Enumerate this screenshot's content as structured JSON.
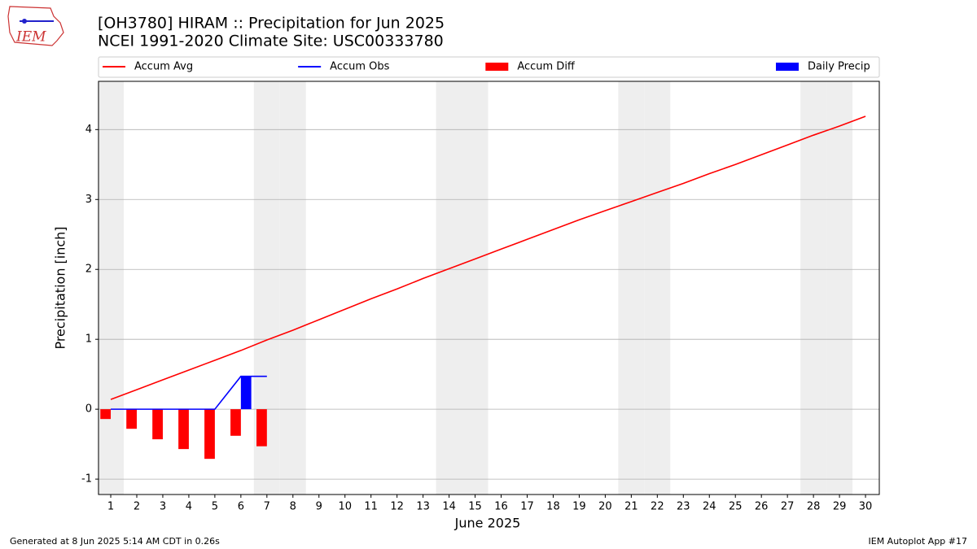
{
  "chart_data": {
    "type": "bar_line",
    "title": "[OH3780] HIRAM :: Precipitation for Jun 2025",
    "subtitle": "NCEI 1991-2020 Climate Site: USC00333780",
    "logo_text": "IEM",
    "xlabel": "June 2025",
    "ylabel": "Precipitation [inch]",
    "footer_left": "Generated at 8 Jun 2025 5:14 AM CDT in 0.26s",
    "footer_right": "IEM Autoplot App #17",
    "x": [
      1,
      2,
      3,
      4,
      5,
      6,
      7,
      8,
      9,
      10,
      11,
      12,
      13,
      14,
      15,
      16,
      17,
      18,
      19,
      20,
      21,
      22,
      23,
      24,
      25,
      26,
      27,
      28,
      29,
      30
    ],
    "shaded_days": [
      1,
      7,
      8,
      14,
      15,
      21,
      22,
      28,
      29
    ],
    "series": [
      {
        "name": "Accum Avg",
        "kind": "line",
        "color": "#ff0000",
        "values": [
          0.14,
          0.28,
          0.42,
          0.56,
          0.7,
          0.84,
          0.99,
          1.13,
          1.28,
          1.43,
          1.58,
          1.72,
          1.87,
          2.01,
          2.15,
          2.29,
          2.43,
          2.57,
          2.71,
          2.84,
          2.97,
          3.1,
          3.23,
          3.37,
          3.5,
          3.64,
          3.78,
          3.92,
          4.05,
          4.19
        ]
      },
      {
        "name": "Accum Obs",
        "kind": "line",
        "color": "#0000ff",
        "values": [
          0,
          0,
          0,
          0,
          0,
          0.47,
          0.47,
          null,
          null,
          null,
          null,
          null,
          null,
          null,
          null,
          null,
          null,
          null,
          null,
          null,
          null,
          null,
          null,
          null,
          null,
          null,
          null,
          null,
          null,
          null
        ]
      },
      {
        "name": "Accum Diff",
        "kind": "bar",
        "color": "#ff0000",
        "values": [
          -0.14,
          -0.28,
          -0.43,
          -0.57,
          -0.71,
          -0.38,
          -0.53,
          null,
          null,
          null,
          null,
          null,
          null,
          null,
          null,
          null,
          null,
          null,
          null,
          null,
          null,
          null,
          null,
          null,
          null,
          null,
          null,
          null,
          null,
          null
        ]
      },
      {
        "name": "Daily Precip",
        "kind": "bar",
        "color": "#0000ff",
        "values": [
          0,
          0,
          0,
          0,
          0,
          0.47,
          0,
          null,
          null,
          null,
          null,
          null,
          null,
          null,
          null,
          null,
          null,
          null,
          null,
          null,
          null,
          null,
          null,
          null,
          null,
          null,
          null,
          null,
          null,
          null
        ]
      }
    ],
    "xlim": [
      0.53,
      30.53
    ],
    "ylim": [
      -1.22,
      4.69
    ],
    "xticks": [
      1,
      2,
      3,
      4,
      5,
      6,
      7,
      8,
      9,
      10,
      11,
      12,
      13,
      14,
      15,
      16,
      17,
      18,
      19,
      20,
      21,
      22,
      23,
      24,
      25,
      26,
      27,
      28,
      29,
      30
    ],
    "yticks": [
      -1,
      0,
      1,
      2,
      3,
      4
    ],
    "grid": true
  }
}
